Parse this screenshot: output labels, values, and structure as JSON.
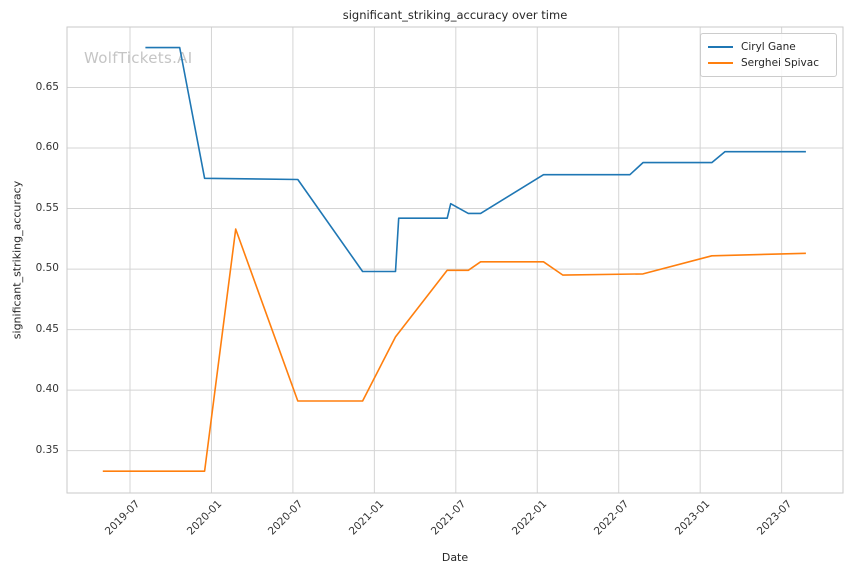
{
  "chart_data": {
    "type": "line",
    "title": "significant_striking_accuracy over time",
    "xlabel": "Date",
    "ylabel": "significant_striking_accuracy",
    "watermark": "WolfTickets.AI",
    "grid": true,
    "grid_color": "#d4d4d4",
    "spine_color": "#cacaca",
    "background_color": "#ffffff",
    "legend_position": "upper right",
    "x_axis": {
      "lim_months_since_2019_07": [
        -4.64,
        52.52
      ],
      "ticks": [
        {
          "label": "2019-07",
          "month": 0
        },
        {
          "label": "2020-01",
          "month": 6
        },
        {
          "label": "2020-07",
          "month": 12
        },
        {
          "label": "2021-01",
          "month": 18
        },
        {
          "label": "2021-07",
          "month": 24
        },
        {
          "label": "2022-01",
          "month": 30
        },
        {
          "label": "2022-07",
          "month": 36
        },
        {
          "label": "2023-01",
          "month": 42
        },
        {
          "label": "2023-07",
          "month": 48
        }
      ]
    },
    "y_axis": {
      "lim": [
        0.315,
        0.7
      ],
      "ticks": [
        0.35,
        0.4,
        0.45,
        0.5,
        0.55,
        0.6,
        0.65
      ]
    },
    "series": [
      {
        "name": "Ciryl Gane",
        "color": "#1f77b4",
        "points": [
          {
            "date": "2019-08-05",
            "value": 0.683
          },
          {
            "date": "2019-10-21",
            "value": 0.683
          },
          {
            "date": "2019-12-16",
            "value": 0.575
          },
          {
            "date": "2020-07-12",
            "value": 0.574
          },
          {
            "date": "2020-12-05",
            "value": 0.498
          },
          {
            "date": "2021-02-18",
            "value": 0.498
          },
          {
            "date": "2021-02-25",
            "value": 0.542
          },
          {
            "date": "2021-06-12",
            "value": 0.542
          },
          {
            "date": "2021-06-20",
            "value": 0.554
          },
          {
            "date": "2021-07-29",
            "value": 0.546
          },
          {
            "date": "2021-08-26",
            "value": 0.546
          },
          {
            "date": "2022-01-15",
            "value": 0.578
          },
          {
            "date": "2022-07-26",
            "value": 0.578
          },
          {
            "date": "2022-08-25",
            "value": 0.588
          },
          {
            "date": "2023-01-27",
            "value": 0.588
          },
          {
            "date": "2023-02-26",
            "value": 0.597
          },
          {
            "date": "2023-08-25",
            "value": 0.597
          }
        ]
      },
      {
        "name": "Serghei Spivac",
        "color": "#ff7f0e",
        "points": [
          {
            "date": "2019-05-01",
            "value": 0.333
          },
          {
            "date": "2019-12-16",
            "value": 0.333
          },
          {
            "date": "2020-02-25",
            "value": 0.533
          },
          {
            "date": "2020-07-12",
            "value": 0.391
          },
          {
            "date": "2020-12-05",
            "value": 0.391
          },
          {
            "date": "2021-02-18",
            "value": 0.444
          },
          {
            "date": "2021-06-12",
            "value": 0.499
          },
          {
            "date": "2021-07-29",
            "value": 0.499
          },
          {
            "date": "2021-08-26",
            "value": 0.506
          },
          {
            "date": "2022-01-15",
            "value": 0.506
          },
          {
            "date": "2022-02-28",
            "value": 0.495
          },
          {
            "date": "2022-08-25",
            "value": 0.496
          },
          {
            "date": "2023-01-27",
            "value": 0.511
          },
          {
            "date": "2023-08-25",
            "value": 0.513
          }
        ]
      }
    ]
  }
}
